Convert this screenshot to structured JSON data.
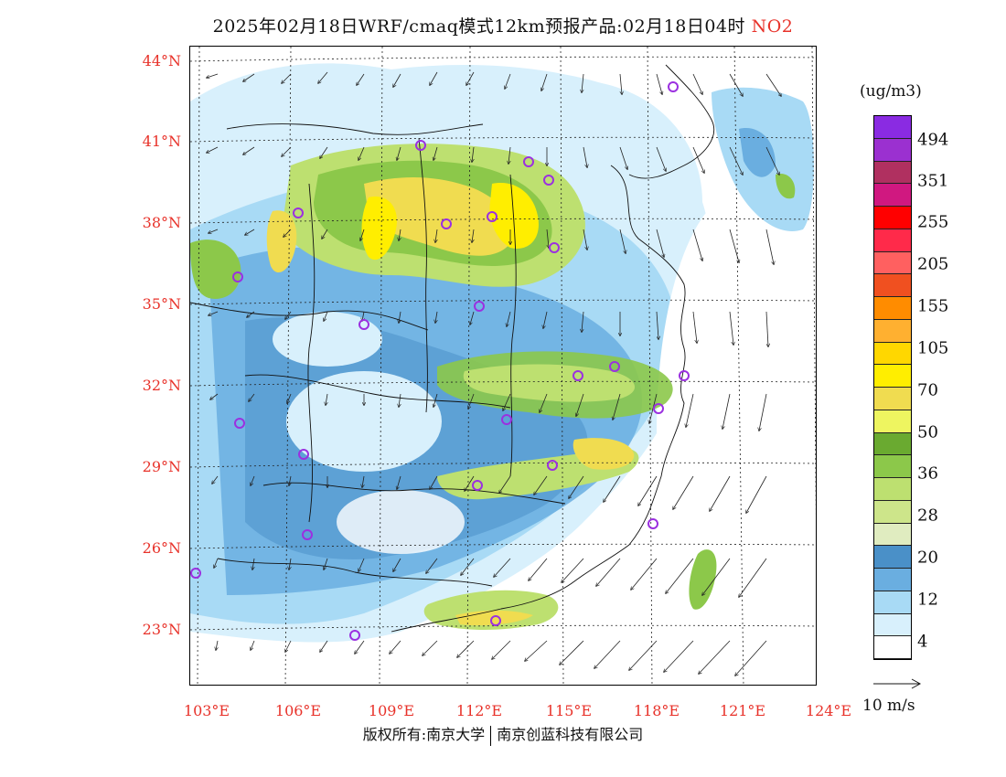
{
  "title": {
    "main": "2025年02月18日WRF/cmaq模式12km预报产品:02月18日04时",
    "species": "NO2"
  },
  "axes": {
    "lat_labels": [
      "44°N",
      "41°N",
      "38°N",
      "35°N",
      "32°N",
      "29°N",
      "26°N",
      "23°N"
    ],
    "lon_labels": [
      "103°E",
      "106°E",
      "109°E",
      "112°E",
      "115°E",
      "118°E",
      "121°E",
      "124°E"
    ]
  },
  "legend": {
    "unit": "(ug/m3)",
    "labels": [
      "494",
      "351",
      "255",
      "205",
      "155",
      "105",
      "70",
      "50",
      "36",
      "28",
      "20",
      "12",
      "4"
    ],
    "colors": [
      "#8a2be2",
      "#9b30d0",
      "#b03060",
      "#d01880",
      "#ff0000",
      "#ff2a4a",
      "#ff6060",
      "#f05020",
      "#ff8c00",
      "#ffb030",
      "#ffd700",
      "#ffee00",
      "#f0dc50",
      "#eef560",
      "#6aaa30",
      "#8cc84a",
      "#bde070",
      "#cde58a",
      "#e0ecc0",
      "#4a90c8",
      "#6aaee0",
      "#a8daf5",
      "#d8f0fc",
      "#ffffff"
    ]
  },
  "wind_reference": "10 m/s",
  "copyright": {
    "left": "版权所有:南京大学",
    "right": "南京创蓝科技有限公司"
  },
  "city_markers_color": "#9b30e0",
  "map_colors": {
    "low": "#d8f0fc",
    "light_blue": "#a8daf5",
    "mid_blue": "#6aaee0",
    "dark_blue": "#4a90c8",
    "pale_green": "#bde070",
    "green": "#8cc84a",
    "dark_green": "#6aaa30",
    "yellow": "#ffee00",
    "gold": "#f0dc50"
  }
}
